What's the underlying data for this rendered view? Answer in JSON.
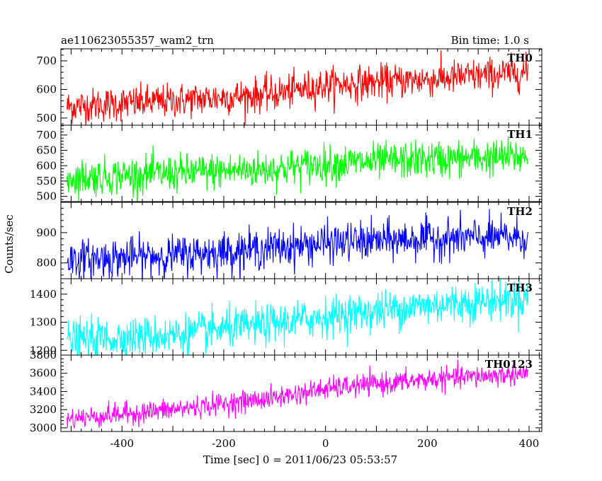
{
  "header": {
    "left": "ae110623055357_wam2_trn",
    "right": "Bin time: 1.0 s"
  },
  "ylabel": "Counts/sec",
  "xlabel": "Time [sec] 0 = 2011/06/23 05:53:57",
  "chart_data": {
    "type": "line",
    "bin_time_s": 1.0,
    "x_range": [
      -508,
      398
    ],
    "xlim": [
      -520,
      425
    ],
    "x_ticks": [
      -400,
      -200,
      0,
      200,
      400
    ],
    "approx_points_per_series": 907,
    "note_values": "each panel: a noisy light curve sampled every 1.0 s; trend given as [x, mean counts/sec] points and noise_sigma",
    "panels": [
      {
        "name": "TH0",
        "color": "#ff0000",
        "ylim": [
          475,
          742
        ],
        "y_ticks": [
          500,
          600,
          700
        ],
        "trend": [
          [
            -508,
            540
          ],
          [
            -300,
            560
          ],
          [
            -100,
            585
          ],
          [
            0,
            615
          ],
          [
            200,
            635
          ],
          [
            398,
            660
          ]
        ],
        "noise_sigma": 30
      },
      {
        "name": "TH1",
        "color": "#00ff00",
        "ylim": [
          483,
          732
        ],
        "y_ticks": [
          500,
          550,
          600,
          650,
          700
        ],
        "trend": [
          [
            -508,
            560
          ],
          [
            -300,
            575
          ],
          [
            -100,
            590
          ],
          [
            0,
            605
          ],
          [
            200,
            620
          ],
          [
            398,
            630
          ]
        ],
        "noise_sigma": 30
      },
      {
        "name": "TH2",
        "color": "#0000ff",
        "ylim": [
          748,
          1000
        ],
        "y_ticks": [
          800,
          900
        ],
        "trend": [
          [
            -508,
            810
          ],
          [
            -300,
            825
          ],
          [
            -100,
            850
          ],
          [
            0,
            865
          ],
          [
            200,
            880
          ],
          [
            398,
            885
          ]
        ],
        "noise_sigma": 32
      },
      {
        "name": "TH3",
        "color": "#00ffff",
        "ylim": [
          1183,
          1455
        ],
        "y_ticks": [
          1200,
          1300,
          1400
        ],
        "trend": [
          [
            -508,
            1235
          ],
          [
            -300,
            1255
          ],
          [
            -100,
            1295
          ],
          [
            0,
            1320
          ],
          [
            200,
            1360
          ],
          [
            398,
            1385
          ]
        ],
        "noise_sigma": 35
      },
      {
        "name": "TH0123",
        "color": "#ff00ff",
        "ylim": [
          2960,
          3800
        ],
        "y_ticks": [
          3000,
          3200,
          3400,
          3600,
          3800
        ],
        "trend": [
          [
            -508,
            3100
          ],
          [
            -300,
            3200
          ],
          [
            -100,
            3330
          ],
          [
            0,
            3430
          ],
          [
            200,
            3530
          ],
          [
            398,
            3600
          ]
        ],
        "noise_sigma": 60
      }
    ]
  }
}
